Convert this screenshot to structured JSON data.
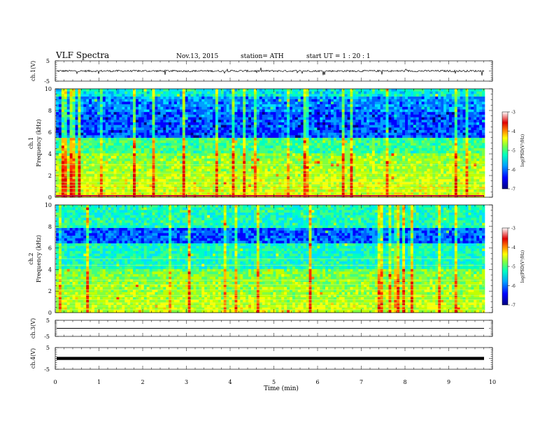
{
  "header": {
    "title": "VLF  Spectra",
    "date": "Nov.13, 2015",
    "station": "station= ATH",
    "start": "start  UT  =   1  : 20 : 1"
  },
  "colorbar": {
    "label": "log(PSD(V²/Hz)",
    "ticks": [
      "-3",
      "-4",
      "-5",
      "-6",
      "-7"
    ],
    "stops": [
      "#000080",
      "#0000ff",
      "#00a0ff",
      "#00ffc0",
      "#80ff40",
      "#ffff00",
      "#ff8000",
      "#e00000",
      "#ffffff"
    ]
  },
  "chart_data": [
    {
      "type": "line",
      "panel": "ch1-waveform",
      "ylabel": "ch.1(V)",
      "ylim": [
        -5,
        5
      ],
      "ytick_labels": [
        "5",
        "-5"
      ],
      "xlim": [
        0,
        10
      ],
      "baseline": 0,
      "description_series": [
        {
          "values_range": [
            -1,
            1
          ]
        }
      ]
    },
    {
      "type": "heatmap",
      "panel": "ch1-spectrogram",
      "ylabel_top": "ch.1",
      "ylabel": "Frequency  (kHz)",
      "ylim": [
        0,
        10
      ],
      "ytick_labels": [
        "0",
        "2",
        "4",
        "6",
        "8",
        "10"
      ],
      "xlim": [
        0,
        9.8
      ],
      "zlim": [
        -7,
        -3
      ],
      "zlabel": "log(PSD(V²/Hz)"
    },
    {
      "type": "heatmap",
      "panel": "ch2-spectrogram",
      "ylabel_top": "ch.2",
      "ylabel": "Frequency  (kHz)",
      "ylim": [
        0,
        10
      ],
      "ytick_labels": [
        "0",
        "2",
        "4",
        "6",
        "8",
        "10"
      ],
      "xlim": [
        0,
        9.8
      ],
      "zlim": [
        -7,
        -3
      ],
      "zlabel": "log(PSD(V²/Hz)"
    },
    {
      "type": "line",
      "panel": "ch3-waveform",
      "ylabel": "ch.3(V)",
      "ylim": [
        -5,
        5
      ],
      "ytick_labels": [
        "5",
        "-5"
      ],
      "xlim": [
        0,
        10
      ],
      "baseline": 0
    },
    {
      "type": "line",
      "panel": "ch4-waveform",
      "ylabel": "ch.4(V)",
      "ylim": [
        -5,
        5
      ],
      "ytick_labels": [
        "5",
        "-5"
      ],
      "xlim": [
        0,
        10
      ],
      "baseline": 0
    }
  ],
  "xaxis": {
    "label": "Time  (min)",
    "ticks": [
      "0",
      "1",
      "2",
      "3",
      "4",
      "5",
      "6",
      "7",
      "8",
      "9",
      "10"
    ]
  }
}
